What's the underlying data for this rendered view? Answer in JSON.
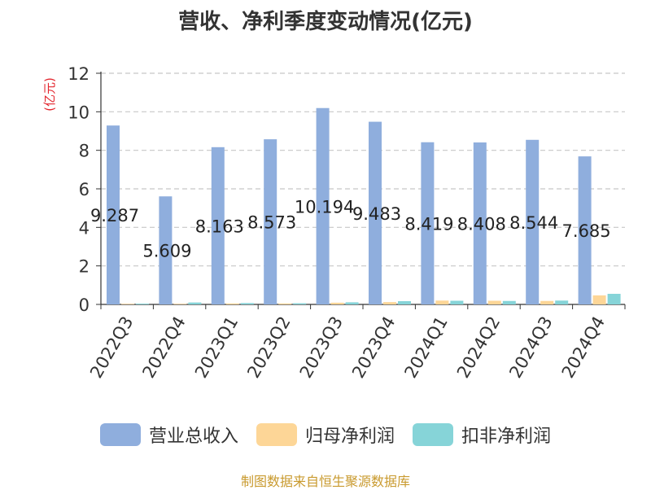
{
  "title": "营收、净利季度变动情况(亿元)",
  "source": "制图数据来自恒生聚源数据库",
  "chart_data": {
    "type": "bar",
    "title": "营收、净利季度变动情况(亿元)",
    "ylabel": "(亿元)",
    "ylim": [
      0,
      12
    ],
    "yticks": [
      0,
      2,
      4,
      6,
      8,
      10,
      12
    ],
    "grid": true,
    "legend_position": "bottom",
    "categories": [
      "2022Q3",
      "2022Q4",
      "2023Q1",
      "2023Q2",
      "2023Q3",
      "2023Q4",
      "2024Q1",
      "2024Q2",
      "2024Q3",
      "2024Q4"
    ],
    "series": [
      {
        "name": "营业总收入",
        "color": "#8faedd",
        "values": [
          9.287,
          5.609,
          8.163,
          8.573,
          10.194,
          9.483,
          8.419,
          8.408,
          8.544,
          7.685
        ],
        "labels": [
          "9.287",
          "5.609",
          "8.163",
          "8.573",
          "10.194",
          "9.483",
          "8.419",
          "8.408",
          "8.544",
          "7.685"
        ]
      },
      {
        "name": "归母净利润",
        "color": "#fdd697",
        "values": [
          0.03,
          0.03,
          0.05,
          0.05,
          0.09,
          0.12,
          0.2,
          0.19,
          0.18,
          0.47
        ]
      },
      {
        "name": "扣非净利润",
        "color": "#86d4d8",
        "values": [
          0.04,
          0.1,
          0.07,
          0.06,
          0.11,
          0.17,
          0.19,
          0.18,
          0.2,
          0.55
        ]
      }
    ]
  }
}
